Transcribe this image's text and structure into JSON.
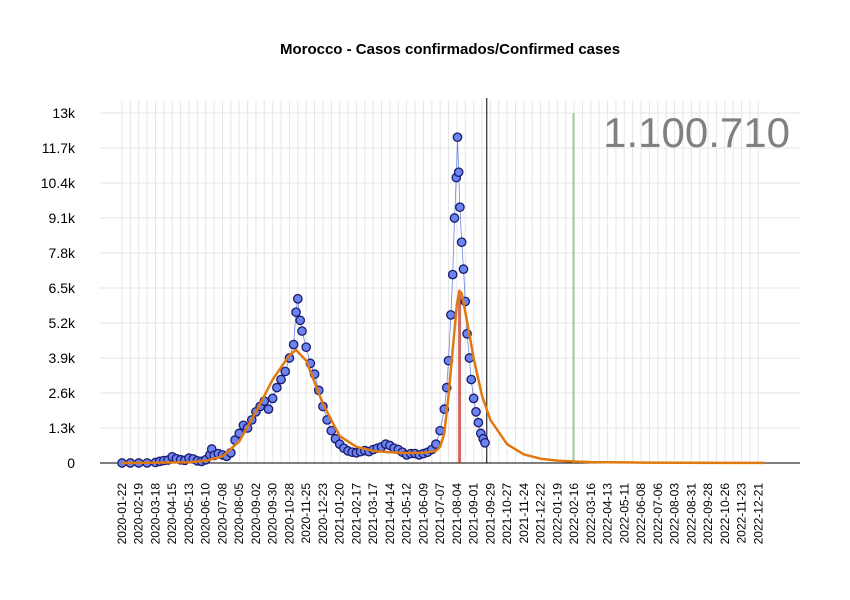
{
  "chart_data": {
    "type": "scatter",
    "title": "Morocco - Casos confirmados/Confirmed cases",
    "total_label": "1.100.710",
    "xlabel": "",
    "ylabel": "",
    "x_range": [
      "2020-01-22",
      "2022-12-31"
    ],
    "ylim": [
      0,
      13000
    ],
    "y_ticks": [
      0,
      1300,
      2600,
      3900,
      5200,
      6500,
      7800,
      9100,
      10400,
      11700,
      13000
    ],
    "y_tick_labels": [
      "0",
      "1.3k",
      "2.6k",
      "3.9k",
      "5.2k",
      "6.5k",
      "7.8k",
      "9.1k",
      "10.4k",
      "11.7k",
      "13k"
    ],
    "x_tick_labels": [
      "2020-01-22",
      "2020-02-19",
      "2020-03-18",
      "2020-04-15",
      "2020-05-13",
      "2020-06-10",
      "2020-07-08",
      "2020-08-05",
      "2020-09-02",
      "2020-09-30",
      "2020-10-28",
      "2020-11-25",
      "2020-12-23",
      "2021-01-20",
      "2021-02-17",
      "2021-03-17",
      "2021-04-14",
      "2021-05-12",
      "2021-06-09",
      "2021-07-07",
      "2021-08-04",
      "2021-09-01",
      "2021-09-29",
      "2021-10-27",
      "2021-11-24",
      "2021-12-22",
      "2022-01-19",
      "2022-02-16",
      "2022-03-16",
      "2022-04-13",
      "2022-05-11",
      "2022-06-08",
      "2022-07-06",
      "2022-08-03",
      "2022-08-31",
      "2022-09-28",
      "2022-10-26",
      "2022-11-23",
      "2022-12-21"
    ],
    "grid": true,
    "current_date": "2021-09-23",
    "green_line_date": "2022-02-15",
    "red_bar": {
      "start": "2021-08-06",
      "end": "2021-08-10",
      "peak": 6400
    },
    "series": [
      {
        "type": "scatter",
        "color": "#6b84f0",
        "edge": "#1a1a6e",
        "line_color": "#4a68d8",
        "points": [
          [
            "2020-01-22",
            0
          ],
          [
            "2020-02-05",
            0
          ],
          [
            "2020-02-19",
            0
          ],
          [
            "2020-03-04",
            2
          ],
          [
            "2020-03-18",
            20
          ],
          [
            "2020-03-25",
            60
          ],
          [
            "2020-04-01",
            90
          ],
          [
            "2020-04-08",
            110
          ],
          [
            "2020-04-15",
            230
          ],
          [
            "2020-04-22",
            160
          ],
          [
            "2020-04-29",
            120
          ],
          [
            "2020-05-06",
            100
          ],
          [
            "2020-05-13",
            180
          ],
          [
            "2020-05-20",
            150
          ],
          [
            "2020-05-27",
            80
          ],
          [
            "2020-06-03",
            60
          ],
          [
            "2020-06-10",
            120
          ],
          [
            "2020-06-17",
            300
          ],
          [
            "2020-06-20",
            520
          ],
          [
            "2020-06-24",
            280
          ],
          [
            "2020-07-01",
            350
          ],
          [
            "2020-07-08",
            300
          ],
          [
            "2020-07-15",
            250
          ],
          [
            "2020-07-22",
            380
          ],
          [
            "2020-07-29",
            850
          ],
          [
            "2020-08-05",
            1100
          ],
          [
            "2020-08-12",
            1400
          ],
          [
            "2020-08-19",
            1300
          ],
          [
            "2020-08-26",
            1600
          ],
          [
            "2020-09-02",
            1900
          ],
          [
            "2020-09-09",
            2100
          ],
          [
            "2020-09-16",
            2300
          ],
          [
            "2020-09-23",
            2000
          ],
          [
            "2020-09-30",
            2400
          ],
          [
            "2020-10-07",
            2800
          ],
          [
            "2020-10-14",
            3100
          ],
          [
            "2020-10-21",
            3400
          ],
          [
            "2020-10-28",
            3900
          ],
          [
            "2020-11-04",
            4400
          ],
          [
            "2020-11-08",
            5600
          ],
          [
            "2020-11-11",
            6100
          ],
          [
            "2020-11-15",
            5300
          ],
          [
            "2020-11-18",
            4900
          ],
          [
            "2020-11-25",
            4300
          ],
          [
            "2020-12-02",
            3700
          ],
          [
            "2020-12-09",
            3300
          ],
          [
            "2020-12-16",
            2700
          ],
          [
            "2020-12-23",
            2100
          ],
          [
            "2020-12-30",
            1600
          ],
          [
            "2021-01-06",
            1200
          ],
          [
            "2021-01-13",
            900
          ],
          [
            "2021-01-20",
            700
          ],
          [
            "2021-01-27",
            550
          ],
          [
            "2021-02-03",
            450
          ],
          [
            "2021-02-10",
            400
          ],
          [
            "2021-02-17",
            380
          ],
          [
            "2021-02-24",
            420
          ],
          [
            "2021-03-03",
            460
          ],
          [
            "2021-03-10",
            420
          ],
          [
            "2021-03-17",
            500
          ],
          [
            "2021-03-24",
            550
          ],
          [
            "2021-03-31",
            600
          ],
          [
            "2021-04-07",
            700
          ],
          [
            "2021-04-14",
            650
          ],
          [
            "2021-04-21",
            550
          ],
          [
            "2021-04-28",
            500
          ],
          [
            "2021-05-05",
            400
          ],
          [
            "2021-05-12",
            300
          ],
          [
            "2021-05-19",
            350
          ],
          [
            "2021-05-26",
            350
          ],
          [
            "2021-06-02",
            300
          ],
          [
            "2021-06-09",
            350
          ],
          [
            "2021-06-16",
            400
          ],
          [
            "2021-06-23",
            500
          ],
          [
            "2021-06-30",
            700
          ],
          [
            "2021-07-07",
            1200
          ],
          [
            "2021-07-14",
            2000
          ],
          [
            "2021-07-18",
            2800
          ],
          [
            "2021-07-21",
            3800
          ],
          [
            "2021-07-25",
            5500
          ],
          [
            "2021-07-28",
            7000
          ],
          [
            "2021-07-31",
            9100
          ],
          [
            "2021-08-03",
            10600
          ],
          [
            "2021-08-05",
            12100
          ],
          [
            "2021-08-07",
            10800
          ],
          [
            "2021-08-09",
            9500
          ],
          [
            "2021-08-12",
            8200
          ],
          [
            "2021-08-15",
            7200
          ],
          [
            "2021-08-18",
            6000
          ],
          [
            "2021-08-21",
            4800
          ],
          [
            "2021-08-25",
            3900
          ],
          [
            "2021-08-28",
            3100
          ],
          [
            "2021-09-01",
            2400
          ],
          [
            "2021-09-05",
            1900
          ],
          [
            "2021-09-09",
            1500
          ],
          [
            "2021-09-13",
            1100
          ],
          [
            "2021-09-17",
            900
          ],
          [
            "2021-09-20",
            750
          ]
        ]
      },
      {
        "type": "line",
        "color": "#e07a10",
        "points": [
          [
            "2020-01-22",
            0
          ],
          [
            "2020-05-13",
            30
          ],
          [
            "2020-06-10",
            80
          ],
          [
            "2020-07-08",
            250
          ],
          [
            "2020-08-05",
            800
          ],
          [
            "2020-09-02",
            1900
          ],
          [
            "2020-09-30",
            3100
          ],
          [
            "2020-10-28",
            4000
          ],
          [
            "2020-11-08",
            4200
          ],
          [
            "2020-11-25",
            3800
          ],
          [
            "2020-12-23",
            2200
          ],
          [
            "2021-01-20",
            1000
          ],
          [
            "2021-02-17",
            600
          ],
          [
            "2021-03-17",
            450
          ],
          [
            "2021-04-14",
            400
          ],
          [
            "2021-05-12",
            370
          ],
          [
            "2021-06-09",
            380
          ],
          [
            "2021-06-30",
            450
          ],
          [
            "2021-07-07",
            600
          ],
          [
            "2021-07-14",
            1100
          ],
          [
            "2021-07-21",
            2500
          ],
          [
            "2021-07-28",
            4200
          ],
          [
            "2021-08-04",
            5900
          ],
          [
            "2021-08-08",
            6400
          ],
          [
            "2021-08-12",
            6300
          ],
          [
            "2021-08-20",
            5400
          ],
          [
            "2021-09-01",
            3900
          ],
          [
            "2021-09-15",
            2500
          ],
          [
            "2021-09-29",
            1600
          ],
          [
            "2021-10-27",
            700
          ],
          [
            "2021-11-24",
            320
          ],
          [
            "2021-12-22",
            160
          ],
          [
            "2022-01-19",
            90
          ],
          [
            "2022-02-16",
            55
          ],
          [
            "2022-03-16",
            35
          ],
          [
            "2022-04-13",
            25
          ],
          [
            "2022-06-08",
            15
          ],
          [
            "2022-08-03",
            10
          ],
          [
            "2022-10-26",
            5
          ],
          [
            "2022-12-31",
            3
          ]
        ]
      }
    ]
  }
}
